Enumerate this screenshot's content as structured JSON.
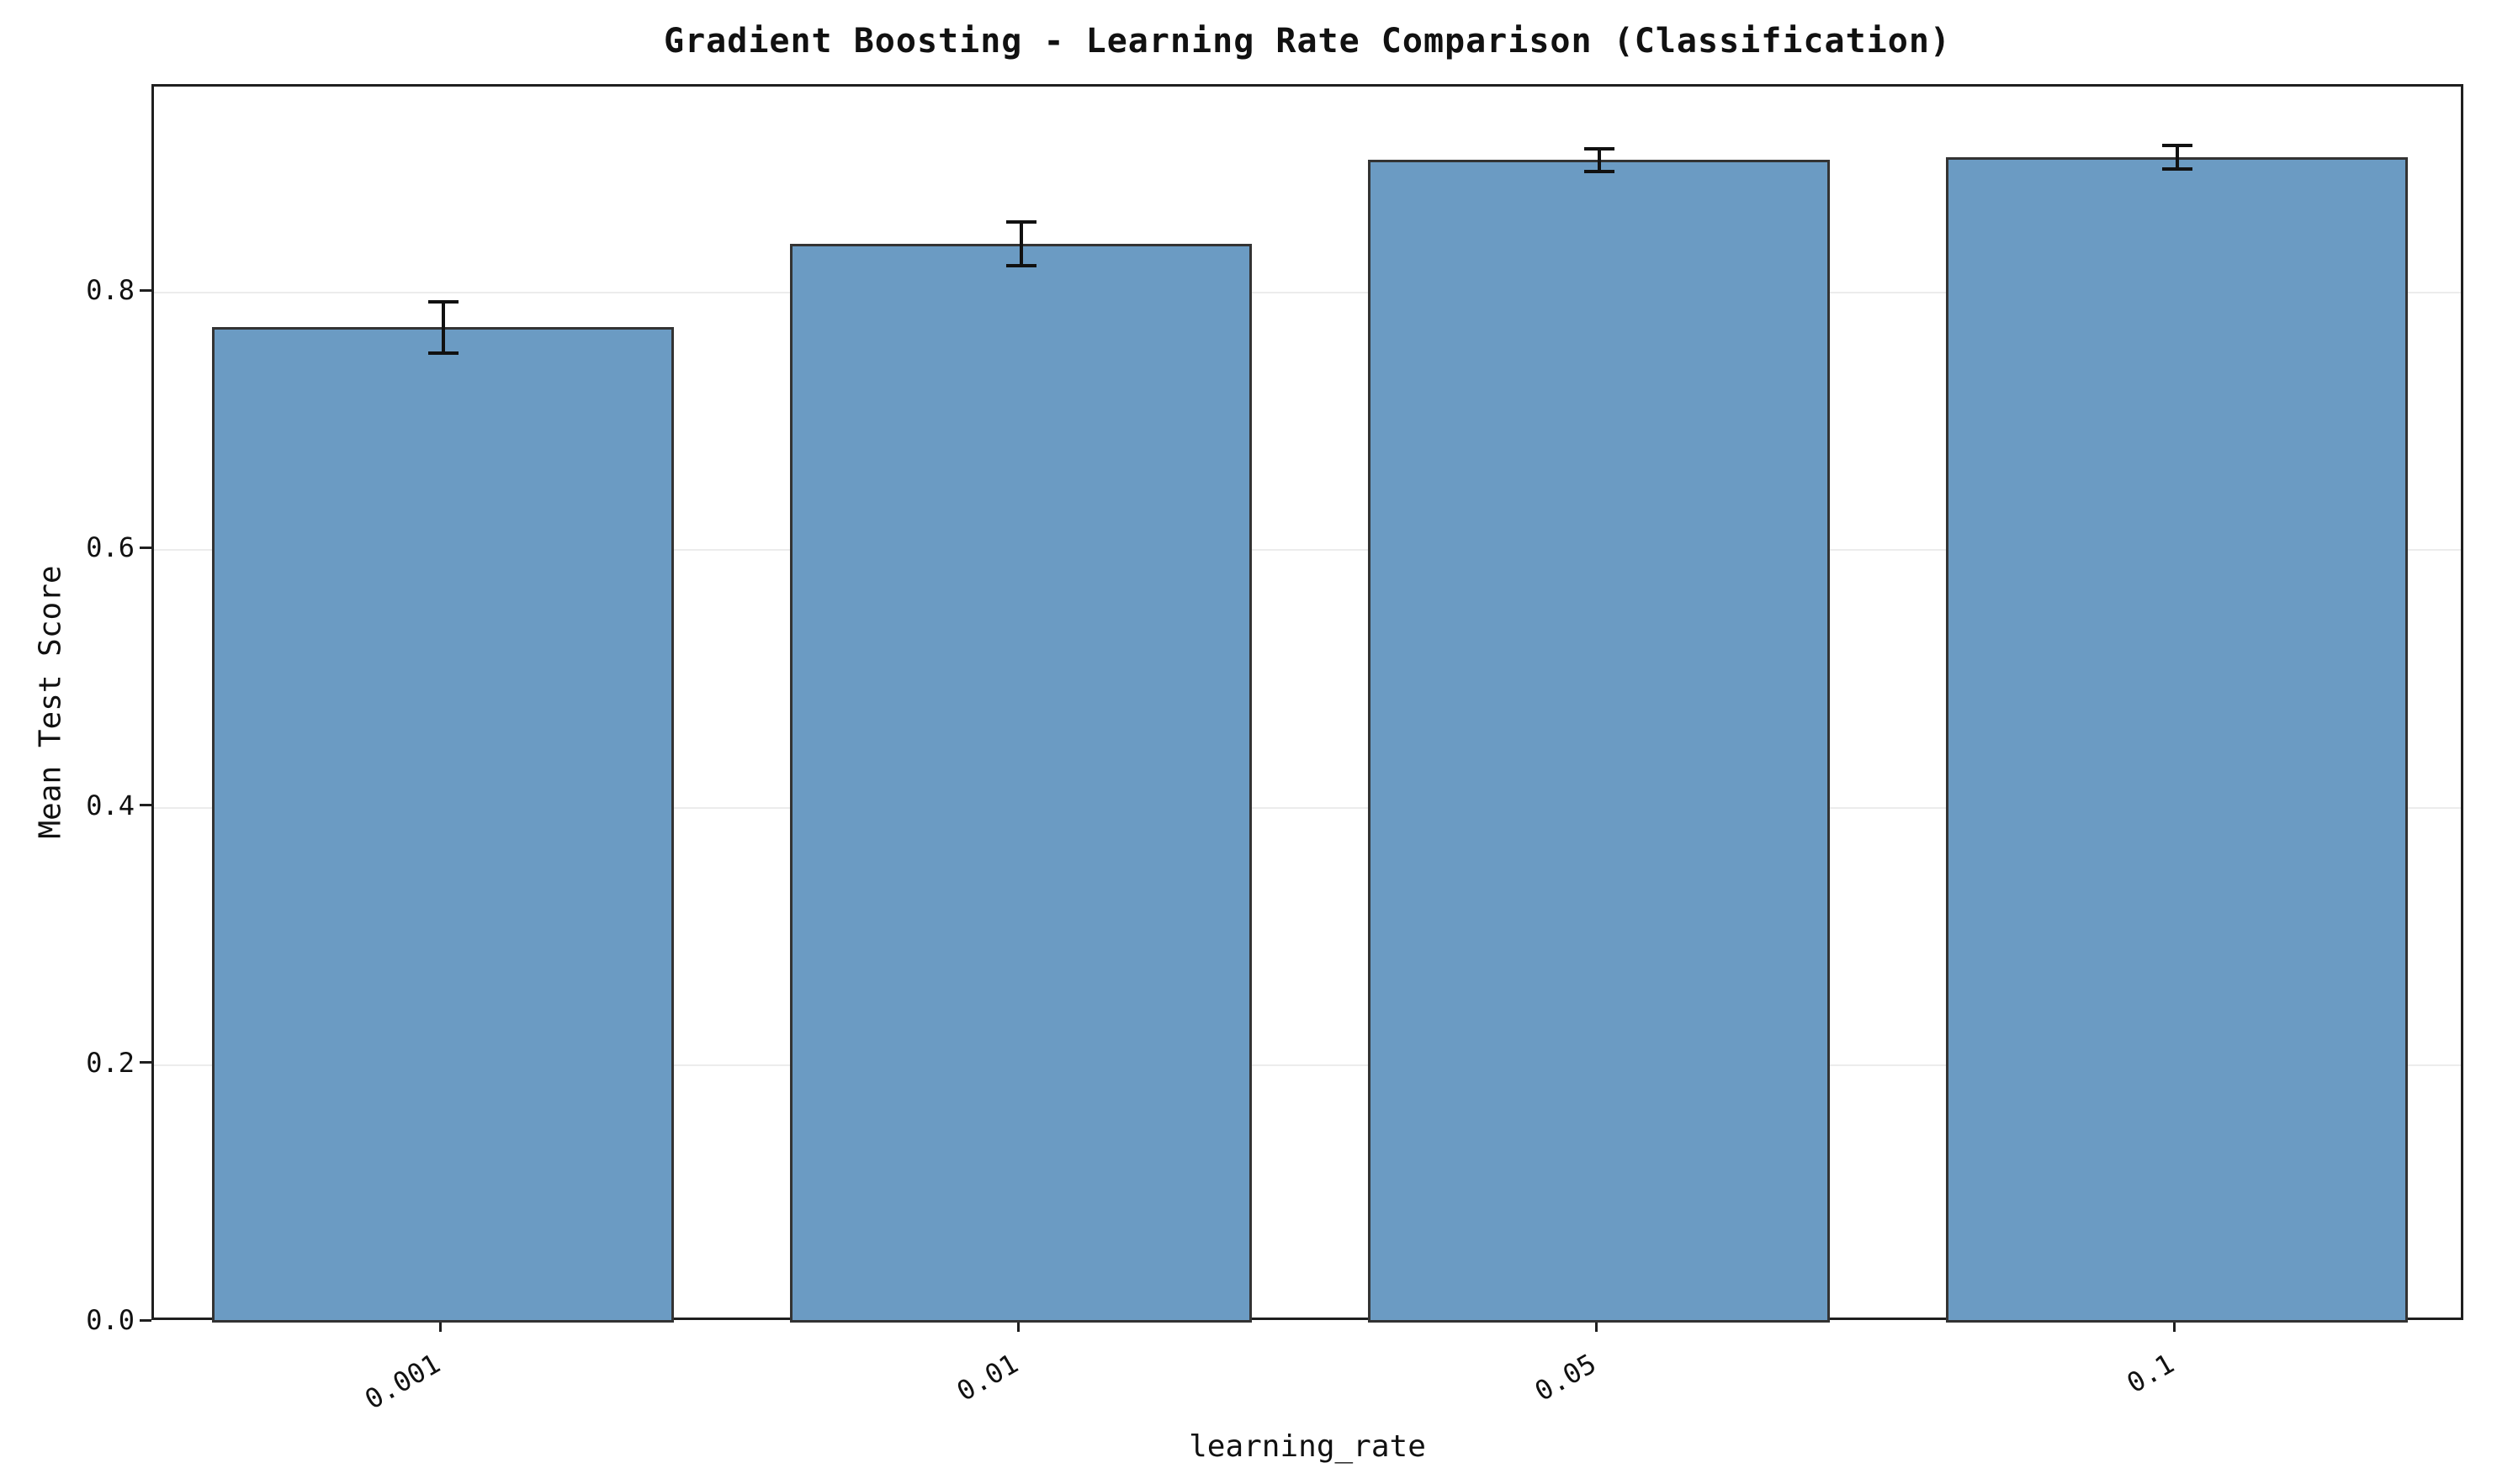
{
  "chart_data": {
    "type": "bar",
    "title": "Gradient Boosting - Learning Rate Comparison (Classification)",
    "xlabel": "learning_rate",
    "ylabel": "Mean Test Score",
    "categories": [
      "0.001",
      "0.01",
      "0.05",
      "0.1"
    ],
    "series": [
      {
        "name": "Mean Test Score",
        "values": [
          0.773,
          0.838,
          0.903,
          0.905
        ],
        "errors": [
          0.02,
          0.017,
          0.009,
          0.009
        ]
      }
    ],
    "yticks": [
      0.0,
      0.2,
      0.4,
      0.6,
      0.8
    ],
    "ytick_labels": [
      "0.0",
      "0.2",
      "0.4",
      "0.6",
      "0.8"
    ],
    "ylim": [
      0,
      0.96
    ],
    "grid": true,
    "legend": "none",
    "colors": {
      "bar_fill": "#6b9bc3",
      "bar_edge": "#333333",
      "error_bar": "#111111",
      "grid": "#ececec",
      "spine": "#1f1f1f",
      "background": "#ffffff",
      "text": "#111111"
    }
  }
}
